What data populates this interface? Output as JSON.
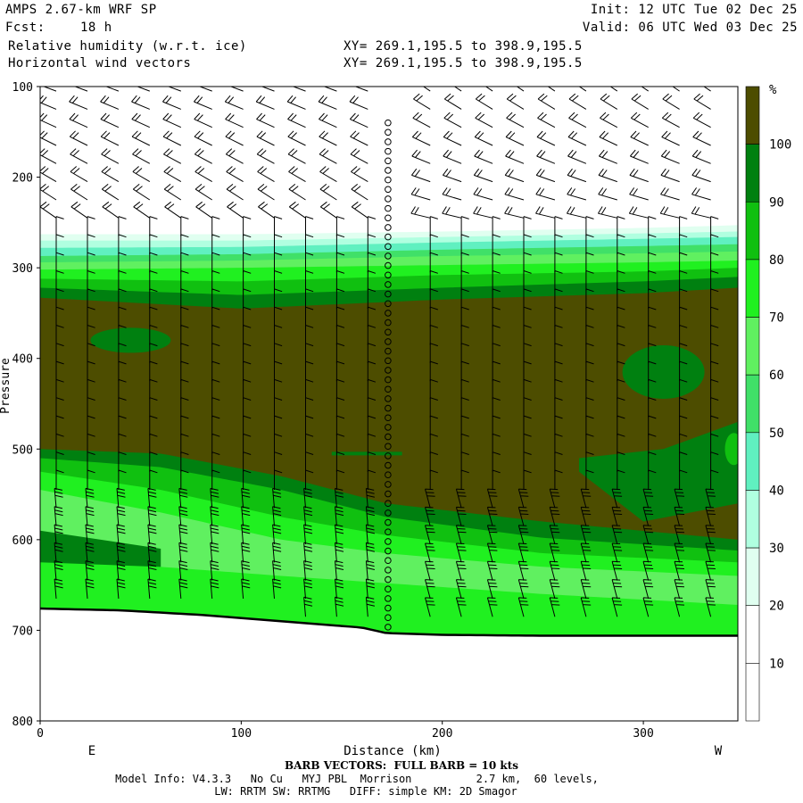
{
  "header": {
    "model": "AMPS 2.67-km WRF SP",
    "fcst_label": "Fcst:",
    "fcst_value": "18 h",
    "field1": "Relative humidity (w.r.t. ice)",
    "field2": "Horizontal wind vectors",
    "xy1": "XY= 269.1,195.5 to 398.9,195.5",
    "xy2": "XY= 269.1,195.5 to 398.9,195.5",
    "init": "Init: 12 UTC Tue 02 Dec 25",
    "valid": "Valid: 06 UTC Wed 03 Dec 25"
  },
  "footer": {
    "barb_note": "BARB VECTORS:  FULL BARB = 10 kts",
    "model_info": "Model Info: V4.3.3   No Cu   MYJ PBL  Morrison          2.7 km,  60 levels,",
    "physics": "LW: RRTM SW: RRTMG   DIFF: simple KM: 2D Smagor"
  },
  "colors": {
    "c1": "#ffffff",
    "c2": "#ffffff",
    "c3": "#e0fff0",
    "c4": "#b0ffe0",
    "c5": "#60f0c0",
    "c6": "#40e068",
    "c7": "#60f060",
    "c8": "#20f020",
    "c9": "#10c010",
    "c10": "#008010",
    "c11": "#4d4d00"
  },
  "chart_data": {
    "type": "heatmap",
    "title": "Relative humidity (w.r.t. ice)",
    "xlabel": "Distance (km)",
    "ylabel": "Pressure",
    "xlim": [
      0,
      347
    ],
    "ylim": [
      800,
      100
    ],
    "x_ticks": [
      0,
      100,
      200,
      300
    ],
    "y_ticks": [
      100,
      200,
      300,
      400,
      500,
      600,
      700,
      800
    ],
    "x_left_label": "E",
    "x_right_label": "W",
    "colorbar": {
      "unit": "%",
      "levels": [
        10,
        20,
        30,
        40,
        50,
        60,
        70,
        80,
        90,
        100
      ]
    },
    "terrain_surface": [
      {
        "x": 0,
        "p": 676
      },
      {
        "x": 40,
        "p": 678
      },
      {
        "x": 80,
        "p": 683
      },
      {
        "x": 120,
        "p": 690
      },
      {
        "x": 160,
        "p": 697
      },
      {
        "x": 172,
        "p": 703
      },
      {
        "x": 200,
        "p": 705
      },
      {
        "x": 250,
        "p": 706
      },
      {
        "x": 300,
        "p": 706
      },
      {
        "x": 347,
        "p": 706
      }
    ],
    "rh_layers": [
      {
        "level": "<10",
        "top": [
          [
            0,
            100
          ],
          [
            347,
            100
          ]
        ]
      },
      {
        "level": "20-30",
        "top": [
          [
            0,
            263
          ],
          [
            100,
            263
          ],
          [
            200,
            260
          ],
          [
            300,
            256
          ],
          [
            347,
            253
          ]
        ]
      },
      {
        "level": "30-40",
        "top": [
          [
            0,
            270
          ],
          [
            100,
            270
          ],
          [
            200,
            266
          ],
          [
            300,
            262
          ],
          [
            347,
            260
          ]
        ]
      },
      {
        "level": "40-50",
        "top": [
          [
            0,
            278
          ],
          [
            100,
            277
          ],
          [
            200,
            272
          ],
          [
            300,
            268
          ],
          [
            347,
            266
          ]
        ]
      },
      {
        "level": "50-60",
        "top": [
          [
            0,
            287
          ],
          [
            100,
            285
          ],
          [
            200,
            280
          ],
          [
            300,
            276
          ],
          [
            347,
            274
          ]
        ]
      },
      {
        "level": "60-70",
        "top": [
          [
            0,
            294
          ],
          [
            100,
            292
          ],
          [
            200,
            287
          ],
          [
            300,
            284
          ],
          [
            347,
            282
          ]
        ]
      },
      {
        "level": "70-80",
        "top": [
          [
            0,
            302
          ],
          [
            100,
            300
          ],
          [
            200,
            297
          ],
          [
            300,
            294
          ],
          [
            347,
            292
          ]
        ]
      },
      {
        "level": "80-90",
        "top": [
          [
            0,
            312
          ],
          [
            100,
            315
          ],
          [
            200,
            308
          ],
          [
            300,
            304
          ],
          [
            347,
            300
          ]
        ]
      },
      {
        "level": "90-100",
        "top": [
          [
            0,
            322
          ],
          [
            100,
            330
          ],
          [
            200,
            322
          ],
          [
            300,
            315
          ],
          [
            347,
            310
          ]
        ]
      },
      {
        "level": ">100",
        "top": [
          [
            0,
            333
          ],
          [
            100,
            345
          ],
          [
            200,
            335
          ],
          [
            300,
            328
          ],
          [
            347,
            322
          ]
        ]
      }
    ],
    "barbs": {
      "note": "FULL BARB = 10 kts",
      "dry_column_center_km": 173
    }
  }
}
